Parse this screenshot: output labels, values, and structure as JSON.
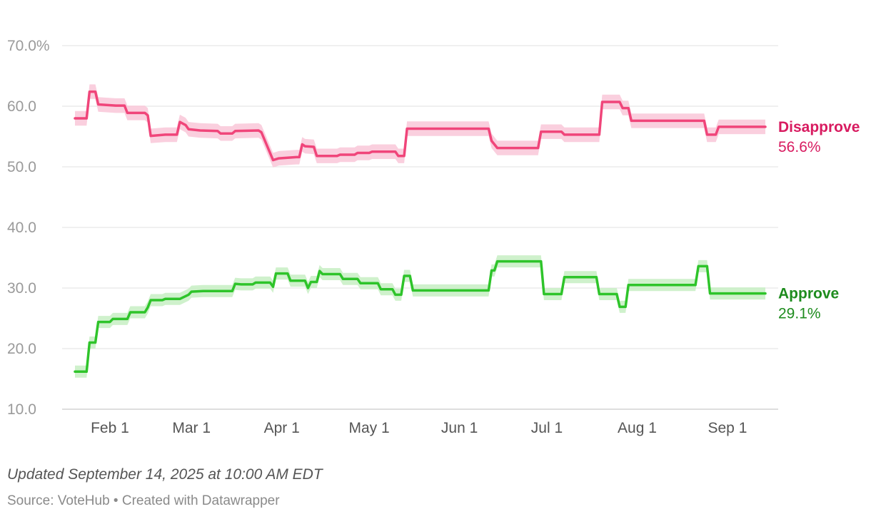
{
  "chart_data": {
    "type": "line",
    "title": "",
    "xlabel": "",
    "ylabel": "",
    "x_range": [
      "2025-01-20",
      "2025-09-14"
    ],
    "ylim": [
      10,
      70
    ],
    "y_ticks": [
      10,
      20,
      30,
      40,
      50,
      60,
      70
    ],
    "y_tick_labels": [
      "10.0",
      "20.0",
      "30.0",
      "40.0",
      "50.0",
      "60.0",
      "70.0%"
    ],
    "x_ticks": [
      {
        "date": "2025-02-01",
        "label": "Feb 1"
      },
      {
        "date": "2025-03-01",
        "label": "Mar 1"
      },
      {
        "date": "2025-04-01",
        "label": "Apr 1"
      },
      {
        "date": "2025-05-01",
        "label": "May 1"
      },
      {
        "date": "2025-06-01",
        "label": "Jun 1"
      },
      {
        "date": "2025-07-01",
        "label": "Jul 1"
      },
      {
        "date": "2025-08-01",
        "label": "Aug 1"
      },
      {
        "date": "2025-09-01",
        "label": "Sep 1"
      }
    ],
    "grid": "horizontal",
    "legend": "direct labels at line ends (right)",
    "series": [
      {
        "name": "Disapprove",
        "end_label": "56.6%",
        "color": "#f0457a",
        "label_color": "#d81b60",
        "band_color": "#f9c7d8",
        "band_width": 1.2,
        "points": [
          [
            "2025-01-20",
            58.0
          ],
          [
            "2025-01-24",
            58.0
          ],
          [
            "2025-01-25",
            62.4
          ],
          [
            "2025-01-27",
            62.4
          ],
          [
            "2025-01-28",
            60.3
          ],
          [
            "2025-02-03",
            60.1
          ],
          [
            "2025-02-06",
            60.1
          ],
          [
            "2025-02-07",
            58.9
          ],
          [
            "2025-02-13",
            58.9
          ],
          [
            "2025-02-14",
            58.5
          ],
          [
            "2025-02-15",
            55.1
          ],
          [
            "2025-02-20",
            55.3
          ],
          [
            "2025-02-24",
            55.3
          ],
          [
            "2025-02-25",
            57.4
          ],
          [
            "2025-02-27",
            56.9
          ],
          [
            "2025-02-28",
            56.2
          ],
          [
            "2025-03-04",
            56.0
          ],
          [
            "2025-03-10",
            55.9
          ],
          [
            "2025-03-11",
            55.5
          ],
          [
            "2025-03-15",
            55.5
          ],
          [
            "2025-03-16",
            55.9
          ],
          [
            "2025-03-24",
            56.0
          ],
          [
            "2025-03-25",
            55.7
          ],
          [
            "2025-03-29",
            51.1
          ],
          [
            "2025-03-31",
            51.4
          ],
          [
            "2025-04-06",
            51.6
          ],
          [
            "2025-04-07",
            51.6
          ],
          [
            "2025-04-08",
            53.7
          ],
          [
            "2025-04-09",
            53.4
          ],
          [
            "2025-04-12",
            53.3
          ],
          [
            "2025-04-13",
            51.8
          ],
          [
            "2025-04-20",
            51.8
          ],
          [
            "2025-04-21",
            52.0
          ],
          [
            "2025-04-26",
            52.0
          ],
          [
            "2025-04-27",
            52.3
          ],
          [
            "2025-05-01",
            52.3
          ],
          [
            "2025-05-02",
            52.5
          ],
          [
            "2025-05-10",
            52.5
          ],
          [
            "2025-05-11",
            51.8
          ],
          [
            "2025-05-13",
            51.8
          ],
          [
            "2025-05-14",
            56.3
          ],
          [
            "2025-06-11",
            56.3
          ],
          [
            "2025-06-12",
            54.3
          ],
          [
            "2025-06-14",
            53.1
          ],
          [
            "2025-06-28",
            53.1
          ],
          [
            "2025-06-29",
            55.8
          ],
          [
            "2025-07-06",
            55.8
          ],
          [
            "2025-07-07",
            55.3
          ],
          [
            "2025-07-19",
            55.3
          ],
          [
            "2025-07-20",
            60.7
          ],
          [
            "2025-07-26",
            60.7
          ],
          [
            "2025-07-27",
            59.7
          ],
          [
            "2025-07-29",
            59.7
          ],
          [
            "2025-07-30",
            57.6
          ],
          [
            "2025-08-24",
            57.6
          ],
          [
            "2025-08-25",
            55.3
          ],
          [
            "2025-08-28",
            55.3
          ],
          [
            "2025-08-29",
            56.6
          ],
          [
            "2025-09-14",
            56.6
          ]
        ]
      },
      {
        "name": "Approve",
        "end_label": "29.1%",
        "color": "#2ec42a",
        "label_color": "#1e8c1e",
        "band_color": "#c7efc3",
        "band_width": 1.0,
        "points": [
          [
            "2025-01-20",
            16.2
          ],
          [
            "2025-01-24",
            16.2
          ],
          [
            "2025-01-25",
            21.0
          ],
          [
            "2025-01-27",
            21.0
          ],
          [
            "2025-01-28",
            24.4
          ],
          [
            "2025-02-01",
            24.4
          ],
          [
            "2025-02-02",
            24.9
          ],
          [
            "2025-02-07",
            24.9
          ],
          [
            "2025-02-08",
            26.0
          ],
          [
            "2025-02-13",
            26.0
          ],
          [
            "2025-02-14",
            26.8
          ],
          [
            "2025-02-15",
            28.0
          ],
          [
            "2025-02-19",
            28.0
          ],
          [
            "2025-02-20",
            28.2
          ],
          [
            "2025-02-25",
            28.2
          ],
          [
            "2025-02-28",
            28.9
          ],
          [
            "2025-03-01",
            29.4
          ],
          [
            "2025-03-05",
            29.5
          ],
          [
            "2025-03-15",
            29.5
          ],
          [
            "2025-03-16",
            30.7
          ],
          [
            "2025-03-18",
            30.6
          ],
          [
            "2025-03-22",
            30.6
          ],
          [
            "2025-03-23",
            30.9
          ],
          [
            "2025-03-28",
            30.9
          ],
          [
            "2025-03-29",
            30.2
          ],
          [
            "2025-03-30",
            32.4
          ],
          [
            "2025-04-03",
            32.4
          ],
          [
            "2025-04-04",
            31.2
          ],
          [
            "2025-04-09",
            31.2
          ],
          [
            "2025-04-10",
            30.0
          ],
          [
            "2025-04-11",
            31.0
          ],
          [
            "2025-04-13",
            31.0
          ],
          [
            "2025-04-14",
            32.8
          ],
          [
            "2025-04-15",
            32.3
          ],
          [
            "2025-04-21",
            32.3
          ],
          [
            "2025-04-22",
            31.5
          ],
          [
            "2025-04-27",
            31.5
          ],
          [
            "2025-04-28",
            30.8
          ],
          [
            "2025-05-04",
            30.8
          ],
          [
            "2025-05-05",
            29.8
          ],
          [
            "2025-05-09",
            29.8
          ],
          [
            "2025-05-10",
            28.9
          ],
          [
            "2025-05-12",
            28.9
          ],
          [
            "2025-05-13",
            32.0
          ],
          [
            "2025-05-15",
            32.0
          ],
          [
            "2025-05-16",
            29.6
          ],
          [
            "2025-06-11",
            29.6
          ],
          [
            "2025-06-12",
            32.9
          ],
          [
            "2025-06-13",
            32.9
          ],
          [
            "2025-06-14",
            34.4
          ],
          [
            "2025-06-29",
            34.4
          ],
          [
            "2025-06-30",
            29.0
          ],
          [
            "2025-07-06",
            29.0
          ],
          [
            "2025-07-07",
            31.8
          ],
          [
            "2025-07-18",
            31.8
          ],
          [
            "2025-07-19",
            29.0
          ],
          [
            "2025-07-25",
            29.0
          ],
          [
            "2025-07-26",
            26.9
          ],
          [
            "2025-07-28",
            26.9
          ],
          [
            "2025-07-29",
            30.5
          ],
          [
            "2025-08-21",
            30.5
          ],
          [
            "2025-08-22",
            33.6
          ],
          [
            "2025-08-25",
            33.6
          ],
          [
            "2025-08-26",
            29.1
          ],
          [
            "2025-09-14",
            29.1
          ]
        ]
      }
    ]
  },
  "footer": {
    "updated": "Updated September 14, 2025 at 10:00 AM EDT",
    "source": "Source: VoteHub • Created with Datawrapper"
  }
}
